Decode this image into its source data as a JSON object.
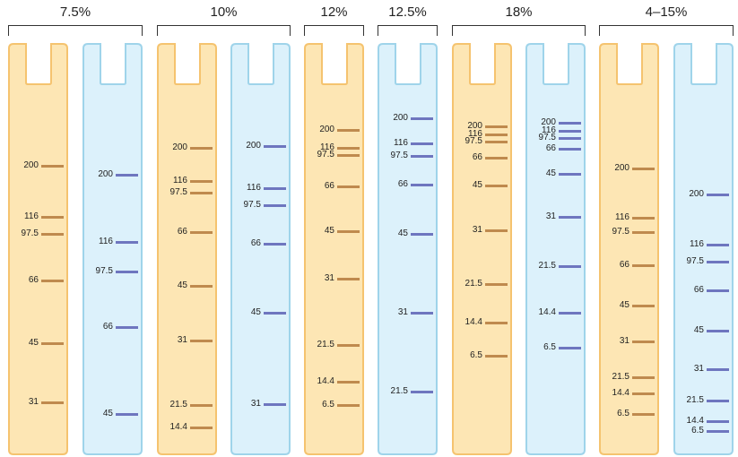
{
  "groups": [
    {
      "label": "7.5%",
      "lanes": [
        {
          "type": "orange",
          "bands": [
            {
              "label": "200",
              "pos": 185
            },
            {
              "label": "116",
              "pos": 242
            },
            {
              "label": "97.5",
              "pos": 261
            },
            {
              "label": "66",
              "pos": 313
            },
            {
              "label": "45",
              "pos": 383
            },
            {
              "label": "31",
              "pos": 449
            }
          ]
        },
        {
          "type": "blue",
          "bands": [
            {
              "label": "200",
              "pos": 195
            },
            {
              "label": "116",
              "pos": 270
            },
            {
              "label": "97.5",
              "pos": 303
            },
            {
              "label": "66",
              "pos": 365
            },
            {
              "label": "45",
              "pos": 462
            }
          ]
        }
      ]
    },
    {
      "label": "10%",
      "lanes": [
        {
          "type": "orange",
          "bands": [
            {
              "label": "200",
              "pos": 165
            },
            {
              "label": "116",
              "pos": 202
            },
            {
              "label": "97.5",
              "pos": 215
            },
            {
              "label": "66",
              "pos": 259
            },
            {
              "label": "45",
              "pos": 319
            },
            {
              "label": "31",
              "pos": 380
            },
            {
              "label": "21.5",
              "pos": 452
            },
            {
              "label": "14.4",
              "pos": 477
            }
          ]
        },
        {
          "type": "blue",
          "bands": [
            {
              "label": "200",
              "pos": 163
            },
            {
              "label": "116",
              "pos": 210
            },
            {
              "label": "97.5",
              "pos": 229
            },
            {
              "label": "66",
              "pos": 272
            },
            {
              "label": "45",
              "pos": 349
            },
            {
              "label": "31",
              "pos": 451
            }
          ]
        }
      ]
    },
    {
      "label": "12%",
      "lanes": [
        {
          "type": "orange",
          "bands": [
            {
              "label": "200",
              "pos": 145
            },
            {
              "label": "116",
              "pos": 165
            },
            {
              "label": "97.5",
              "pos": 173
            },
            {
              "label": "66",
              "pos": 208
            },
            {
              "label": "45",
              "pos": 258
            },
            {
              "label": "31",
              "pos": 311
            },
            {
              "label": "21.5",
              "pos": 385
            },
            {
              "label": "14.4",
              "pos": 426
            },
            {
              "label": "6.5",
              "pos": 452
            }
          ]
        }
      ]
    },
    {
      "label": "12.5%",
      "lanes": [
        {
          "type": "blue",
          "bands": [
            {
              "label": "200",
              "pos": 132
            },
            {
              "label": "116",
              "pos": 160
            },
            {
              "label": "97.5",
              "pos": 174
            },
            {
              "label": "66",
              "pos": 206
            },
            {
              "label": "45",
              "pos": 261
            },
            {
              "label": "31",
              "pos": 349
            },
            {
              "label": "21.5",
              "pos": 437
            }
          ]
        }
      ]
    },
    {
      "label": "18%",
      "lanes": [
        {
          "type": "orange",
          "bands": [
            {
              "label": "200",
              "pos": 141
            },
            {
              "label": "116",
              "pos": 150
            },
            {
              "label": "97.5",
              "pos": 158
            },
            {
              "label": "66",
              "pos": 176
            },
            {
              "label": "45",
              "pos": 207
            },
            {
              "label": "31",
              "pos": 257
            },
            {
              "label": "21.5",
              "pos": 317
            },
            {
              "label": "14.4",
              "pos": 360
            },
            {
              "label": "6.5",
              "pos": 397
            }
          ]
        },
        {
          "type": "blue",
          "bands": [
            {
              "label": "200",
              "pos": 137
            },
            {
              "label": "116",
              "pos": 146
            },
            {
              "label": "97.5",
              "pos": 154
            },
            {
              "label": "66",
              "pos": 166
            },
            {
              "label": "45",
              "pos": 194
            },
            {
              "label": "31",
              "pos": 242
            },
            {
              "label": "21.5",
              "pos": 297
            },
            {
              "label": "14.4",
              "pos": 349
            },
            {
              "label": "6.5",
              "pos": 388
            }
          ]
        }
      ]
    },
    {
      "label": "4–15%",
      "lanes": [
        {
          "type": "orange",
          "bands": [
            {
              "label": "200",
              "pos": 188
            },
            {
              "label": "116",
              "pos": 243
            },
            {
              "label": "97.5",
              "pos": 259
            },
            {
              "label": "66",
              "pos": 296
            },
            {
              "label": "45",
              "pos": 341
            },
            {
              "label": "31",
              "pos": 381
            },
            {
              "label": "21.5",
              "pos": 421
            },
            {
              "label": "14.4",
              "pos": 439
            },
            {
              "label": "6.5",
              "pos": 462
            }
          ]
        },
        {
          "type": "blue",
          "bands": [
            {
              "label": "200",
              "pos": 217
            },
            {
              "label": "116",
              "pos": 273
            },
            {
              "label": "97.5",
              "pos": 292
            },
            {
              "label": "66",
              "pos": 324
            },
            {
              "label": "45",
              "pos": 369
            },
            {
              "label": "31",
              "pos": 412
            },
            {
              "label": "21.5",
              "pos": 447
            },
            {
              "label": "14.4",
              "pos": 470
            },
            {
              "label": "6.5",
              "pos": 481
            }
          ]
        }
      ]
    }
  ],
  "colors": {
    "orange_fill": "#fde6b4",
    "orange_stroke": "#f5c36f",
    "orange_band": "#bf8a4e",
    "blue_fill": "#dcf1fb",
    "blue_stroke": "#9fd4ea",
    "blue_band": "#6e76bf"
  }
}
